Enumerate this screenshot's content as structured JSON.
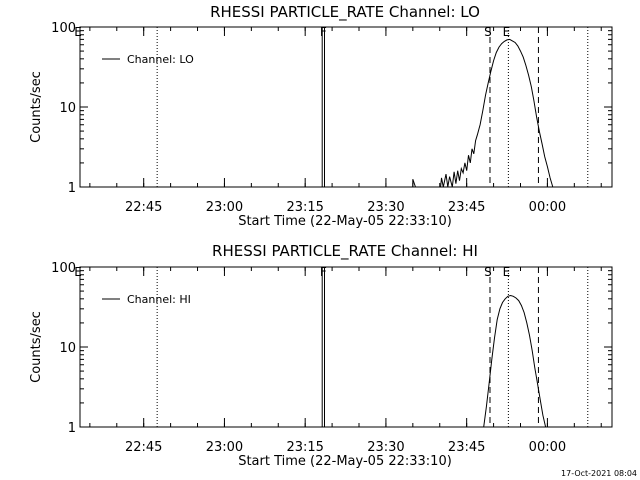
{
  "footer": {
    "timestamp": "17-Oct-2021 08:04"
  },
  "chart_data": [
    {
      "type": "line",
      "title": "RHESSI PARTICLE_RATE Channel: LO",
      "xlabel": "Start Time (22-May-05 22:33:10)",
      "ylabel": "Counts/sec",
      "y_scale": "log",
      "ylim": [
        1,
        100
      ],
      "xlim": [
        "22:33:10",
        "00:12:00"
      ],
      "y_ticks": [
        {
          "value": 1,
          "label": "1"
        },
        {
          "value": 10,
          "label": "10"
        },
        {
          "value": 100,
          "label": "100"
        }
      ],
      "x_ticks": [
        {
          "time": "22:45",
          "label": "22:45"
        },
        {
          "time": "23:00",
          "label": "23:00"
        },
        {
          "time": "23:15",
          "label": "23:15"
        },
        {
          "time": "23:30",
          "label": "23:30"
        },
        {
          "time": "23:45",
          "label": "23:45"
        },
        {
          "time": "00:00",
          "label": "00:00"
        }
      ],
      "legend": {
        "placement": "top-left",
        "entries": [
          "Channel: LO"
        ]
      },
      "markers": [
        {
          "label": "E",
          "time": "22:33:10",
          "style": "none"
        },
        {
          "label": "",
          "time": "22:47:30",
          "style": "dotted"
        },
        {
          "label": "F",
          "time": "23:18:45",
          "style": "solid-double"
        },
        {
          "label": "S",
          "time": "23:49:20",
          "style": "dashed"
        },
        {
          "label": "E",
          "time": "23:52:45",
          "style": "dotted"
        },
        {
          "label": "",
          "time": "23:58:20",
          "style": "dashed"
        },
        {
          "label": "",
          "time": "00:07:30",
          "style": "dotted"
        }
      ],
      "series": [
        {
          "name": "Channel: LO",
          "points": [
            [
              "23:18:10",
              1
            ],
            [
              "23:18:10",
              100
            ],
            [
              "23:18:35",
              100
            ],
            [
              "23:18:35",
              1
            ],
            [
              "23:35:00",
              1
            ],
            [
              "23:35:00",
              1.25
            ],
            [
              "23:35:30",
              1
            ],
            [
              "23:40:10",
              1
            ],
            [
              "23:40:20",
              1.3
            ],
            [
              "23:40:40",
              1
            ],
            [
              "23:41:10",
              1.45
            ],
            [
              "23:41:30",
              1
            ],
            [
              "23:41:50",
              1.35
            ],
            [
              "23:42:20",
              1
            ],
            [
              "23:42:40",
              1.55
            ],
            [
              "23:43:00",
              1.1
            ],
            [
              "23:43:20",
              1.6
            ],
            [
              "23:43:40",
              1.2
            ],
            [
              "23:44:00",
              1.7
            ],
            [
              "23:44:20",
              1.5
            ],
            [
              "23:44:40",
              2.0
            ],
            [
              "23:45:00",
              1.6
            ],
            [
              "23:45:20",
              2.5
            ],
            [
              "23:45:40",
              2.0
            ],
            [
              "23:46:00",
              3.0
            ],
            [
              "23:46:20",
              2.6
            ],
            [
              "23:46:40",
              3.8
            ],
            [
              "23:47:00",
              4.5
            ],
            [
              "23:47:30",
              6.0
            ],
            [
              "23:48:00",
              9.0
            ],
            [
              "23:48:30",
              14.0
            ],
            [
              "23:49:00",
              20.0
            ],
            [
              "23:49:30",
              28.0
            ],
            [
              "23:50:00",
              38.0
            ],
            [
              "23:50:30",
              48.0
            ],
            [
              "23:51:00",
              56.0
            ],
            [
              "23:51:30",
              62.0
            ],
            [
              "23:52:00",
              66.0
            ],
            [
              "23:52:30",
              69.0
            ],
            [
              "23:53:00",
              70.0
            ],
            [
              "23:53:30",
              67.0
            ],
            [
              "23:54:00",
              64.0
            ],
            [
              "23:54:30",
              58.0
            ],
            [
              "23:55:00",
              50.0
            ],
            [
              "23:55:30",
              42.0
            ],
            [
              "23:56:00",
              33.0
            ],
            [
              "23:56:30",
              25.0
            ],
            [
              "23:57:00",
              18.0
            ],
            [
              "23:57:30",
              12.0
            ],
            [
              "23:58:00",
              7.5
            ],
            [
              "23:58:30",
              5.0
            ],
            [
              "23:59:00",
              3.5
            ],
            [
              "23:59:30",
              2.4
            ],
            [
              "00:00:00",
              1.8
            ],
            [
              "00:00:30",
              1.3
            ],
            [
              "00:01:00",
              1.0
            ]
          ]
        }
      ]
    },
    {
      "type": "line",
      "title": "RHESSI PARTICLE_RATE Channel: HI",
      "xlabel": "Start Time (22-May-05 22:33:10)",
      "ylabel": "Counts/sec",
      "y_scale": "log",
      "ylim": [
        1,
        100
      ],
      "xlim": [
        "22:33:10",
        "00:12:00"
      ],
      "y_ticks": [
        {
          "value": 1,
          "label": "1"
        },
        {
          "value": 10,
          "label": "10"
        },
        {
          "value": 100,
          "label": "100"
        }
      ],
      "x_ticks": [
        {
          "time": "22:45",
          "label": "22:45"
        },
        {
          "time": "23:00",
          "label": "23:00"
        },
        {
          "time": "23:15",
          "label": "23:15"
        },
        {
          "time": "23:30",
          "label": "23:30"
        },
        {
          "time": "23:45",
          "label": "23:45"
        },
        {
          "time": "00:00",
          "label": "00:00"
        }
      ],
      "legend": {
        "placement": "top-left",
        "entries": [
          "Channel: HI"
        ]
      },
      "markers": [
        {
          "label": "E",
          "time": "22:33:10",
          "style": "none"
        },
        {
          "label": "",
          "time": "22:47:30",
          "style": "dotted"
        },
        {
          "label": "F",
          "time": "23:18:45",
          "style": "solid-double"
        },
        {
          "label": "S",
          "time": "23:49:20",
          "style": "dashed"
        },
        {
          "label": "E",
          "time": "23:52:45",
          "style": "dotted"
        },
        {
          "label": "",
          "time": "23:58:20",
          "style": "dashed"
        },
        {
          "label": "",
          "time": "00:07:30",
          "style": "dotted"
        }
      ],
      "series": [
        {
          "name": "Channel: HI",
          "points": [
            [
              "23:18:10",
              1
            ],
            [
              "23:18:10",
              100
            ],
            [
              "23:18:35",
              100
            ],
            [
              "23:18:35",
              1
            ],
            [
              "23:48:10",
              1.0
            ],
            [
              "23:48:40",
              1.8
            ],
            [
              "23:49:10",
              3.5
            ],
            [
              "23:49:40",
              7.0
            ],
            [
              "23:50:10",
              13.0
            ],
            [
              "23:50:40",
              22.0
            ],
            [
              "23:51:10",
              30.0
            ],
            [
              "23:51:40",
              36.0
            ],
            [
              "23:52:10",
              40.0
            ],
            [
              "23:52:40",
              43.0
            ],
            [
              "23:53:10",
              44.0
            ],
            [
              "23:53:40",
              43.0
            ],
            [
              "23:54:10",
              41.0
            ],
            [
              "23:54:40",
              38.0
            ],
            [
              "23:55:10",
              33.0
            ],
            [
              "23:55:40",
              27.0
            ],
            [
              "23:56:10",
              20.0
            ],
            [
              "23:56:40",
              14.0
            ],
            [
              "23:57:10",
              9.0
            ],
            [
              "23:57:40",
              5.5
            ],
            [
              "23:58:10",
              3.5
            ],
            [
              "23:58:40",
              2.2
            ],
            [
              "23:59:10",
              1.4
            ],
            [
              "23:59:40",
              1.0
            ]
          ]
        }
      ]
    }
  ]
}
